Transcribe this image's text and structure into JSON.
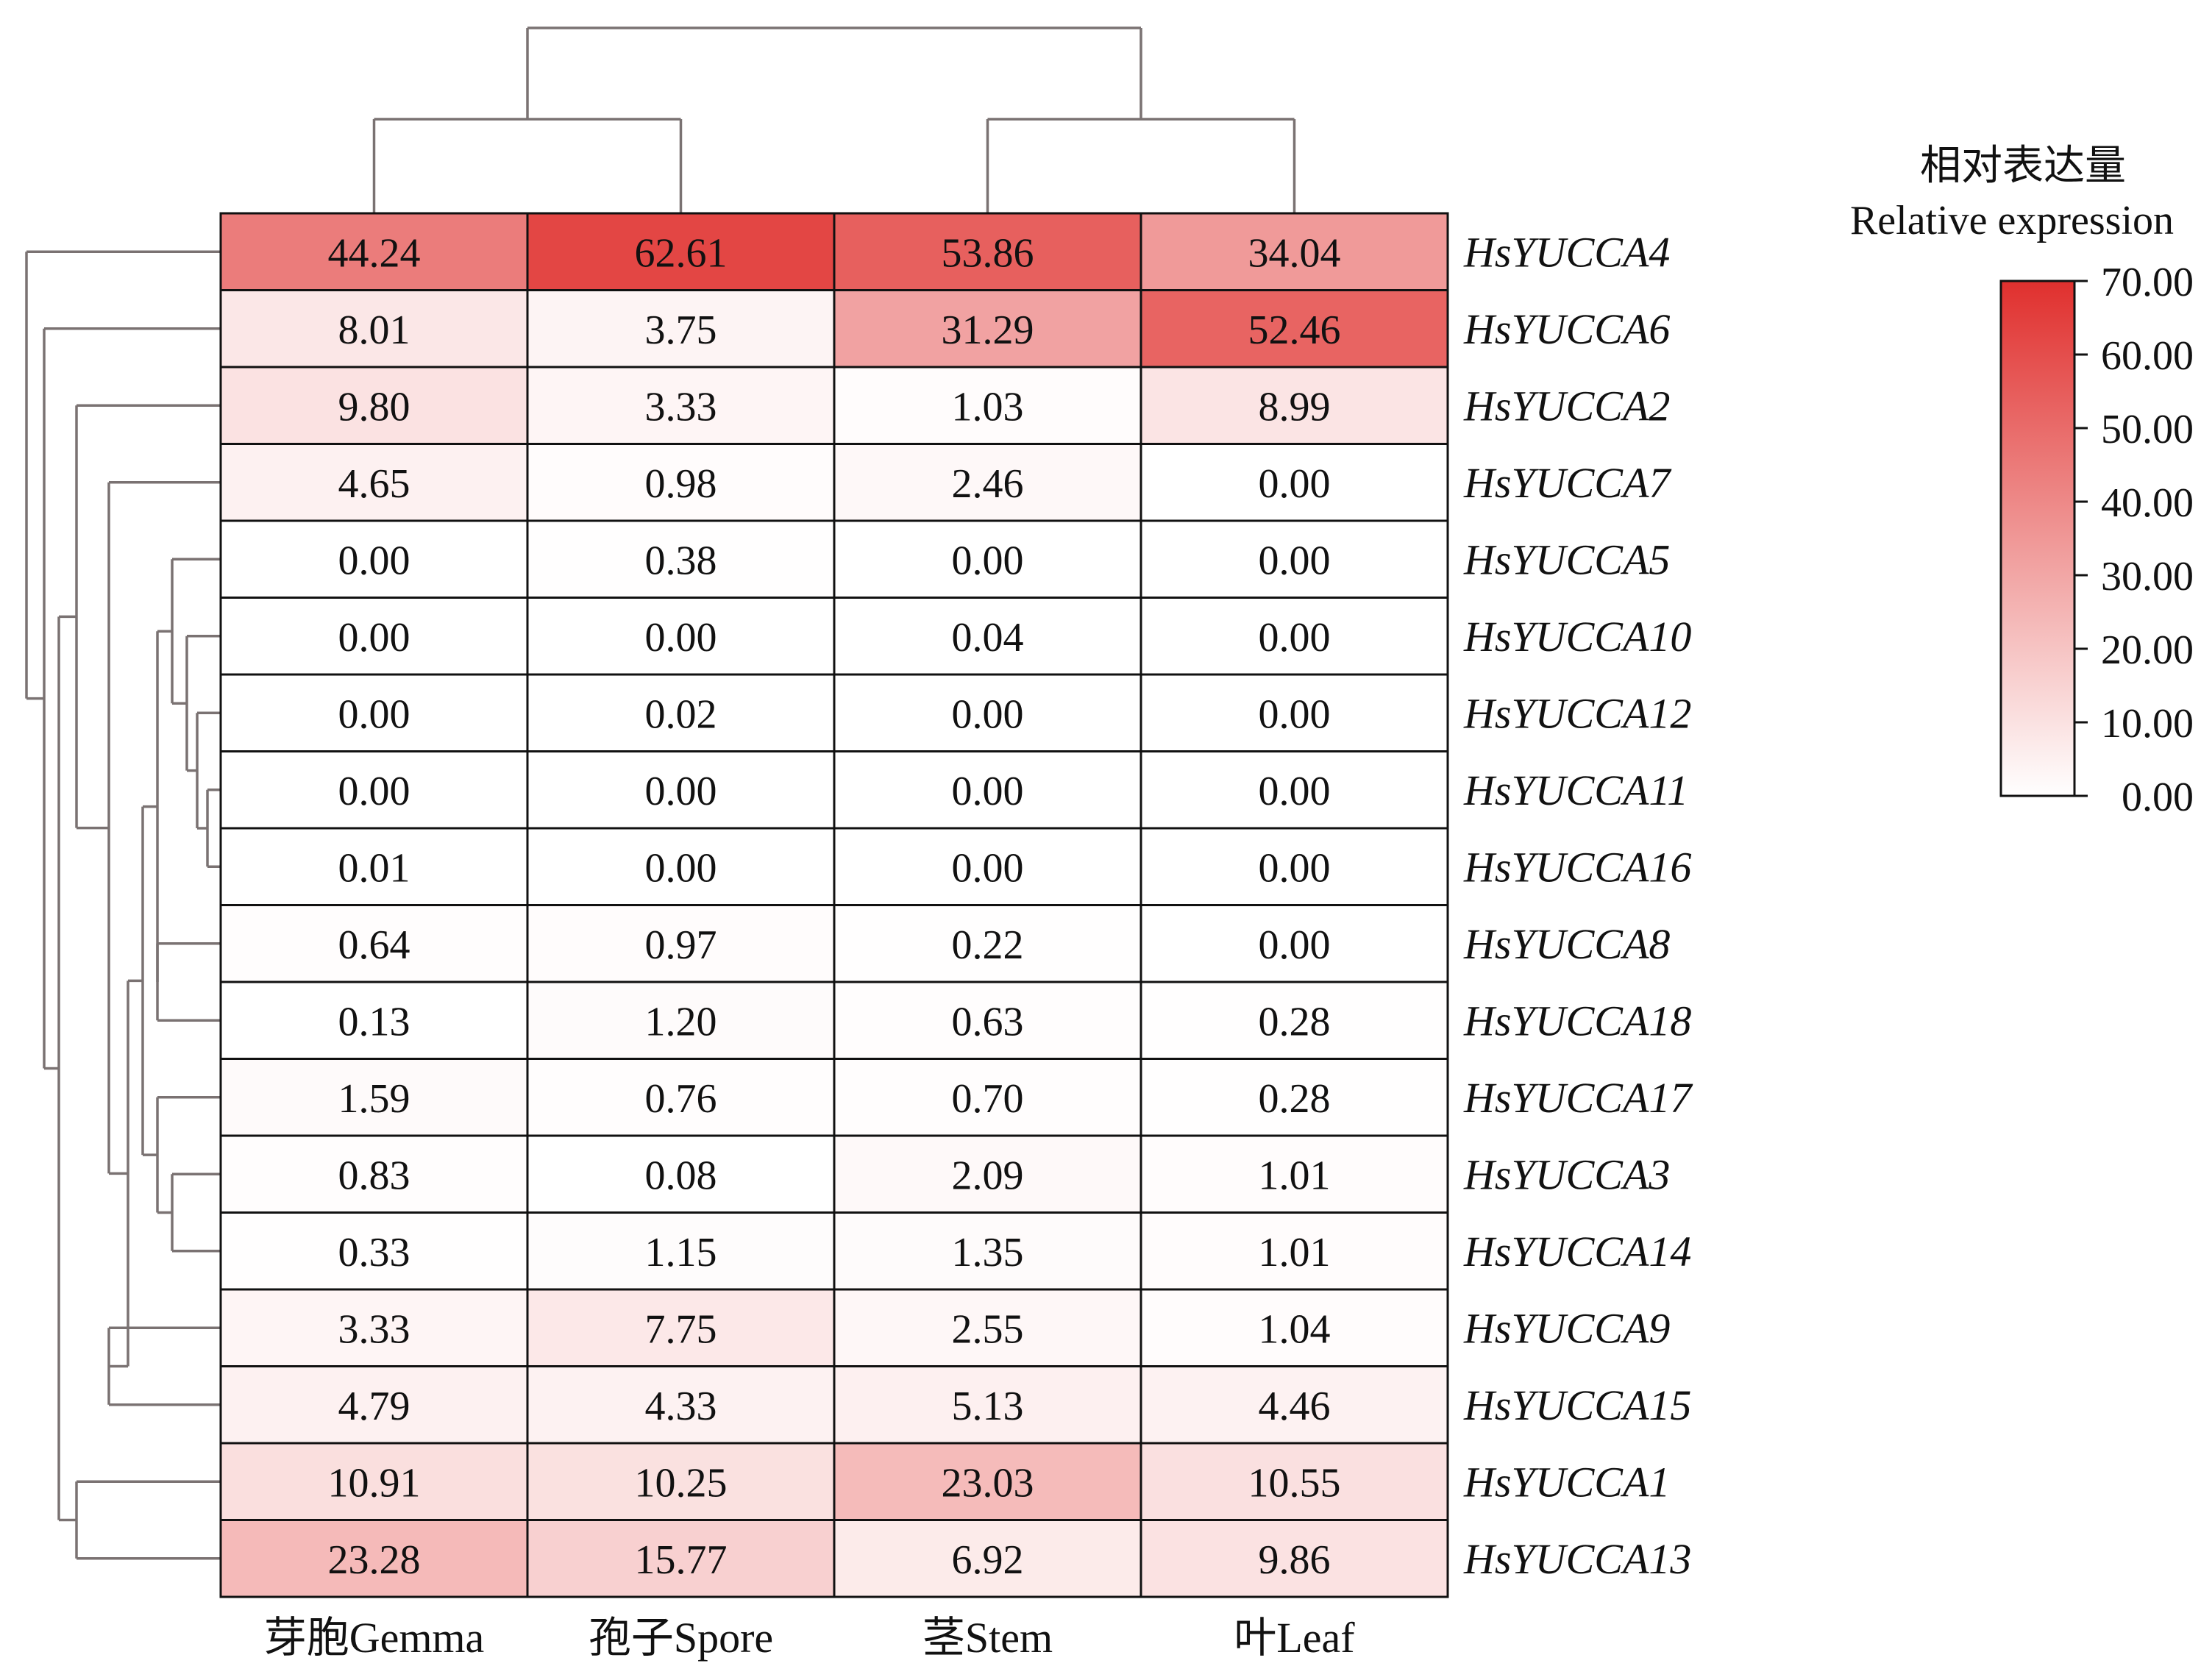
{
  "chart_data": {
    "type": "heatmap",
    "columns": [
      "芽胞Gemma",
      "孢子Spore",
      "茎Stem",
      "叶Leaf"
    ],
    "rows": [
      "HsYUCCA4",
      "HsYUCCA6",
      "HsYUCCA2",
      "HsYUCCA7",
      "HsYUCCA5",
      "HsYUCCA10",
      "HsYUCCA12",
      "HsYUCCA11",
      "HsYUCCA16",
      "HsYUCCA8",
      "HsYUCCA18",
      "HsYUCCA17",
      "HsYUCCA3",
      "HsYUCCA14",
      "HsYUCCA9",
      "HsYUCCA15",
      "HsYUCCA1",
      "HsYUCCA13"
    ],
    "values": [
      [
        44.24,
        62.61,
        53.86,
        34.04
      ],
      [
        8.01,
        3.75,
        31.29,
        52.46
      ],
      [
        9.8,
        3.33,
        1.03,
        8.99
      ],
      [
        4.65,
        0.98,
        2.46,
        0.0
      ],
      [
        0.0,
        0.38,
        0.0,
        0.0
      ],
      [
        0.0,
        0.0,
        0.04,
        0.0
      ],
      [
        0.0,
        0.02,
        0.0,
        0.0
      ],
      [
        0.0,
        0.0,
        0.0,
        0.0
      ],
      [
        0.01,
        0.0,
        0.0,
        0.0
      ],
      [
        0.64,
        0.97,
        0.22,
        0.0
      ],
      [
        0.13,
        1.2,
        0.63,
        0.28
      ],
      [
        1.59,
        0.76,
        0.7,
        0.28
      ],
      [
        0.83,
        0.08,
        2.09,
        1.01
      ],
      [
        0.33,
        1.15,
        1.35,
        1.01
      ],
      [
        3.33,
        7.75,
        2.55,
        1.04
      ],
      [
        4.79,
        4.33,
        5.13,
        4.46
      ],
      [
        10.91,
        10.25,
        23.03,
        10.55
      ],
      [
        23.28,
        15.77,
        6.92,
        9.86
      ]
    ],
    "legend": {
      "title_cn": "相对表达量",
      "title_en": "Relative expression",
      "ticks": [
        "70.00",
        "60.00",
        "50.00",
        "40.00",
        "30.00",
        "20.00",
        "10.00",
        "0.00"
      ],
      "range": [
        0,
        70
      ],
      "color_low": "#ffffff",
      "color_high": "#e0302e"
    },
    "dendrogram_color": "#7a7272"
  }
}
